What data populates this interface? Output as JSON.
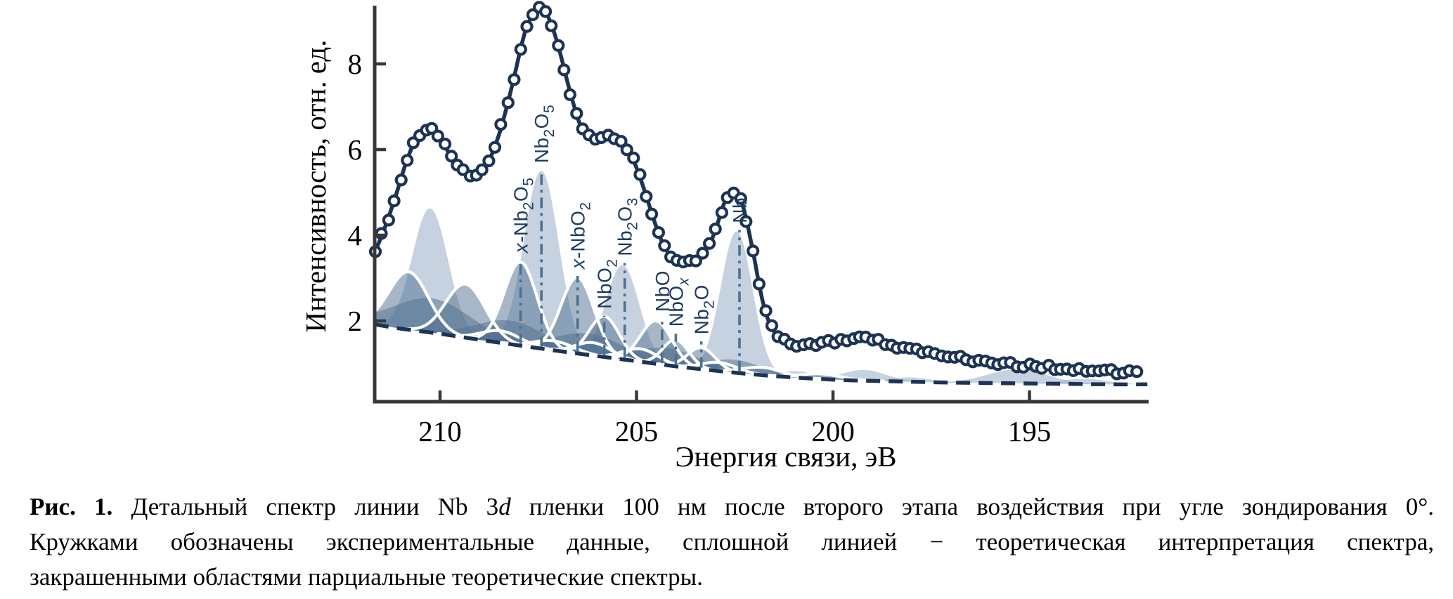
{
  "figure": {
    "caption": {
      "lines": [
        {
          "justify": true,
          "segments": [
            {
              "t": "Рис. 1. ",
              "bold": true
            },
            {
              "t": "Детальный спектр линии Nb 3"
            },
            {
              "t": "d",
              "italic": true
            },
            {
              "t": " пленки 100 нм после второго этапа воздействия при угле зондирования 0°."
            }
          ]
        },
        {
          "justify": true,
          "segments": [
            {
              "t": "Кружками обозначены экспериментальные данные, сплошной линией − теоретическая интерпретация спектра,"
            }
          ]
        },
        {
          "justify": false,
          "segments": [
            {
              "t": "закрашенными областями парциальные теоретические спектры."
            }
          ]
        }
      ]
    }
  },
  "style": {
    "navy": "#1c3354",
    "steel": "#4e7192",
    "label_navy": "#1e3c63",
    "axis_color": "#383838",
    "light_fill": "#8da5bf",
    "light_fill_alpha": 0.5,
    "medium_fill": "#4f6f8f",
    "medium_fill_alpha": 0.5,
    "white": "#ffffff",
    "tick_text": "#000000"
  },
  "chart_data": {
    "type": "line",
    "title": "",
    "xlabel": "Энергия связи, эВ",
    "ylabel": "Интенсивность, отн. ед.",
    "x_ticks": [
      210,
      205,
      200,
      195
    ],
    "y_ticks": [
      2,
      4,
      6,
      8
    ],
    "x_range_ev": [
      211.66,
      192.0
    ],
    "x_descending_left_to_right": true,
    "y_range": [
      0.1,
      9.4
    ],
    "grid": false,
    "legend": "none",
    "series": {
      "theory_line": {
        "name": "теоретическая интерпретация спектра",
        "points": [
          [
            211.66,
            3.62
          ],
          [
            211.5,
            3.95
          ],
          [
            211.3,
            4.45
          ],
          [
            211.1,
            5.0
          ],
          [
            210.9,
            5.6
          ],
          [
            210.7,
            6.08
          ],
          [
            210.5,
            6.38
          ],
          [
            210.35,
            6.46
          ],
          [
            210.2,
            6.45
          ],
          [
            210.05,
            6.33
          ],
          [
            209.9,
            6.12
          ],
          [
            209.7,
            5.8
          ],
          [
            209.5,
            5.56
          ],
          [
            209.3,
            5.42
          ],
          [
            209.15,
            5.37
          ],
          [
            209.0,
            5.43
          ],
          [
            208.85,
            5.58
          ],
          [
            208.7,
            5.85
          ],
          [
            208.5,
            6.35
          ],
          [
            208.3,
            7.0
          ],
          [
            208.1,
            7.75
          ],
          [
            207.95,
            8.35
          ],
          [
            207.8,
            8.85
          ],
          [
            207.62,
            9.18
          ],
          [
            207.48,
            9.32
          ],
          [
            207.35,
            9.25
          ],
          [
            207.2,
            9.0
          ],
          [
            207.05,
            8.6
          ],
          [
            206.9,
            8.1
          ],
          [
            206.75,
            7.55
          ],
          [
            206.6,
            7.05
          ],
          [
            206.45,
            6.62
          ],
          [
            206.3,
            6.4
          ],
          [
            206.15,
            6.3
          ],
          [
            206.0,
            6.26
          ],
          [
            205.85,
            6.27
          ],
          [
            205.7,
            6.3
          ],
          [
            205.55,
            6.3
          ],
          [
            205.4,
            6.22
          ],
          [
            205.25,
            6.05
          ],
          [
            205.1,
            5.8
          ],
          [
            204.95,
            5.45
          ],
          [
            204.8,
            5.05
          ],
          [
            204.65,
            4.62
          ],
          [
            204.5,
            4.2
          ],
          [
            204.35,
            3.85
          ],
          [
            204.2,
            3.6
          ],
          [
            204.05,
            3.45
          ],
          [
            203.9,
            3.4
          ],
          [
            203.75,
            3.38
          ],
          [
            203.6,
            3.4
          ],
          [
            203.45,
            3.46
          ],
          [
            203.3,
            3.58
          ],
          [
            203.15,
            3.78
          ],
          [
            203.02,
            4.05
          ],
          [
            202.9,
            4.38
          ],
          [
            202.78,
            4.72
          ],
          [
            202.66,
            4.93
          ],
          [
            202.55,
            5.02
          ],
          [
            202.45,
            5.0
          ],
          [
            202.35,
            4.85
          ],
          [
            202.24,
            4.5
          ],
          [
            202.12,
            4.0
          ],
          [
            202.0,
            3.45
          ],
          [
            201.88,
            2.85
          ],
          [
            201.76,
            2.35
          ],
          [
            201.64,
            2.0
          ],
          [
            201.52,
            1.78
          ],
          [
            201.4,
            1.62
          ],
          [
            201.25,
            1.53
          ],
          [
            201.1,
            1.48
          ],
          [
            200.9,
            1.44
          ],
          [
            200.7,
            1.43
          ],
          [
            200.5,
            1.44
          ],
          [
            200.3,
            1.47
          ],
          [
            200.1,
            1.5
          ],
          [
            199.9,
            1.53
          ],
          [
            199.7,
            1.57
          ],
          [
            199.5,
            1.61
          ],
          [
            199.35,
            1.63
          ],
          [
            199.2,
            1.62
          ],
          [
            199.0,
            1.57
          ],
          [
            198.8,
            1.51
          ],
          [
            198.6,
            1.46
          ],
          [
            198.4,
            1.42
          ],
          [
            198.2,
            1.38
          ],
          [
            198.0,
            1.34
          ],
          [
            197.8,
            1.3
          ],
          [
            197.6,
            1.27
          ],
          [
            197.4,
            1.23
          ],
          [
            197.2,
            1.2
          ],
          [
            197.0,
            1.17
          ],
          [
            196.8,
            1.14
          ],
          [
            196.6,
            1.11
          ],
          [
            196.4,
            1.08
          ],
          [
            196.2,
            1.06
          ],
          [
            196.0,
            1.04
          ],
          [
            195.8,
            1.02
          ],
          [
            195.6,
            1.0
          ],
          [
            195.4,
            0.98
          ],
          [
            195.2,
            0.97
          ],
          [
            195.0,
            0.96
          ],
          [
            194.8,
            0.95
          ],
          [
            194.6,
            0.93
          ],
          [
            194.4,
            0.91
          ],
          [
            194.2,
            0.89
          ],
          [
            194.0,
            0.87
          ],
          [
            193.8,
            0.86
          ],
          [
            193.6,
            0.85
          ],
          [
            193.4,
            0.84
          ],
          [
            193.2,
            0.83
          ],
          [
            193.0,
            0.82
          ],
          [
            192.8,
            0.81
          ],
          [
            192.6,
            0.8
          ],
          [
            192.4,
            0.79
          ],
          [
            192.25,
            0.78
          ]
        ]
      },
      "experimental_points": {
        "name": "экспериментальные данные (кружки)",
        "sampled_from": "theory_line",
        "step_ev": 0.16,
        "value_jitter": 0.1,
        "marker": "open-circle"
      },
      "background_baseline": {
        "name": "фон (штриховая линия)",
        "points": [
          [
            211.66,
            1.92
          ],
          [
            211.0,
            1.82
          ],
          [
            210.0,
            1.7
          ],
          [
            209.0,
            1.56
          ],
          [
            208.0,
            1.43
          ],
          [
            207.0,
            1.3
          ],
          [
            206.0,
            1.18
          ],
          [
            205.0,
            1.06
          ],
          [
            204.0,
            0.94
          ],
          [
            203.0,
            0.84
          ],
          [
            202.0,
            0.75
          ],
          [
            201.0,
            0.68
          ],
          [
            200.0,
            0.63
          ],
          [
            199.0,
            0.6
          ],
          [
            198.0,
            0.58
          ],
          [
            197.0,
            0.56
          ],
          [
            196.0,
            0.55
          ],
          [
            195.0,
            0.54
          ],
          [
            194.0,
            0.53
          ],
          [
            193.0,
            0.52
          ],
          [
            192.0,
            0.52
          ]
        ]
      },
      "components": [
        {
          "center_ev": 210.25,
          "amplitude": 2.9,
          "sigma": 0.45,
          "style": "light"
        },
        {
          "center_ev": 207.42,
          "amplitude": 4.15,
          "sigma": 0.44,
          "style": "light",
          "label": "Nb2O5"
        },
        {
          "center_ev": 205.35,
          "amplitude": 2.2,
          "sigma": 0.42,
          "style": "light",
          "label": "Nb2O3"
        },
        {
          "center_ev": 202.45,
          "amplitude": 3.3,
          "sigma": 0.4,
          "style": "light",
          "label": "Nb"
        },
        {
          "center_ev": 200.9,
          "amplitude": 0.15,
          "sigma": 0.45,
          "style": "light"
        },
        {
          "center_ev": 199.2,
          "amplitude": 0.25,
          "sigma": 0.55,
          "style": "light"
        },
        {
          "center_ev": 198.0,
          "amplitude": 0.1,
          "sigma": 0.5,
          "style": "light"
        },
        {
          "center_ev": 195.3,
          "amplitude": 0.33,
          "sigma": 0.75,
          "style": "light"
        },
        {
          "center_ev": 193.6,
          "amplitude": 0.12,
          "sigma": 0.6,
          "style": "light"
        },
        {
          "center_ev": 210.2,
          "amplitude": 0.8,
          "sigma": 1.0,
          "style": "medium"
        },
        {
          "center_ev": 208.2,
          "amplitude": 0.55,
          "sigma": 0.9,
          "style": "medium"
        },
        {
          "center_ev": 206.2,
          "amplitude": 0.5,
          "sigma": 0.9,
          "style": "medium"
        },
        {
          "center_ev": 204.2,
          "amplitude": 0.4,
          "sigma": 0.8,
          "style": "medium"
        },
        {
          "center_ev": 202.5,
          "amplitude": 0.3,
          "sigma": 0.7,
          "style": "medium"
        },
        {
          "center_ev": 210.8,
          "amplitude": 1.35,
          "sigma": 0.5,
          "style": "outlined"
        },
        {
          "center_ev": 209.35,
          "amplitude": 1.25,
          "sigma": 0.5,
          "style": "outlined"
        },
        {
          "center_ev": 207.95,
          "amplitude": 1.95,
          "sigma": 0.42,
          "style": "outlined",
          "label": "x-Nb2O5"
        },
        {
          "center_ev": 206.5,
          "amplitude": 1.78,
          "sigma": 0.42,
          "style": "outlined",
          "label": "x-NbO2"
        },
        {
          "center_ev": 205.82,
          "amplitude": 0.95,
          "sigma": 0.38,
          "style": "outlined",
          "label": "NbO2"
        },
        {
          "center_ev": 204.5,
          "amplitude": 1.0,
          "sigma": 0.4,
          "style": "outlined",
          "label": "NbO"
        },
        {
          "center_ev": 204.0,
          "amplitude": 0.62,
          "sigma": 0.33,
          "style": "outlined",
          "label": "NbOx"
        },
        {
          "center_ev": 203.35,
          "amplitude": 0.5,
          "sigma": 0.35,
          "style": "outlined",
          "label": "Nb2O"
        },
        {
          "center_ev": 208.45,
          "amplitude": 0.28,
          "sigma": 0.5,
          "style": "outlined"
        },
        {
          "center_ev": 207.1,
          "amplitude": 0.22,
          "sigma": 0.5,
          "style": "outlined"
        },
        {
          "center_ev": 206.1,
          "amplitude": 0.3,
          "sigma": 0.45,
          "style": "outlined"
        },
        {
          "center_ev": 204.9,
          "amplitude": 0.3,
          "sigma": 0.45,
          "style": "outlined"
        },
        {
          "center_ev": 202.9,
          "amplitude": 0.2,
          "sigma": 0.45,
          "style": "outlined"
        },
        {
          "center_ev": 201.8,
          "amplitude": 0.18,
          "sigma": 0.5,
          "style": "outlined"
        },
        {
          "center_ev": 200.3,
          "amplitude": 0.12,
          "sigma": 0.5,
          "style": "outlined"
        }
      ]
    },
    "peak_markers": [
      {
        "name": "x-nb2o5",
        "ev": 207.95,
        "line_top": 3.42,
        "segments": [
          {
            "t": "x-",
            "italic": true
          },
          {
            "t": "Nb"
          },
          {
            "t": "2",
            "sub": true
          },
          {
            "t": "O"
          },
          {
            "t": "5",
            "sub": true
          }
        ]
      },
      {
        "name": "nb2o5",
        "ev": 207.42,
        "line_top": 5.52,
        "segments": [
          {
            "t": "Nb"
          },
          {
            "t": "2",
            "sub": true
          },
          {
            "t": "O"
          },
          {
            "t": "5",
            "sub": true
          }
        ]
      },
      {
        "name": "x-nbo2",
        "ev": 206.5,
        "line_top": 3.05,
        "segments": [
          {
            "t": "x-",
            "italic": true
          },
          {
            "t": "NbO"
          },
          {
            "t": "2",
            "sub": true
          }
        ]
      },
      {
        "name": "nbo2",
        "ev": 205.82,
        "line_top": 2.12,
        "segments": [
          {
            "t": "NbO"
          },
          {
            "t": "2",
            "sub": true
          }
        ]
      },
      {
        "name": "nb2o3",
        "ev": 205.3,
        "line_top": 3.35,
        "segments": [
          {
            "t": "Nb"
          },
          {
            "t": "2",
            "sub": true
          },
          {
            "t": "O"
          },
          {
            "t": "3",
            "sub": true
          }
        ]
      },
      {
        "name": "nbo",
        "ev": 204.35,
        "line_top": 2.05,
        "segments": [
          {
            "t": "NbO"
          }
        ]
      },
      {
        "name": "nbox",
        "ev": 204.0,
        "line_top": 1.7,
        "segments": [
          {
            "t": "NbO"
          },
          {
            "t": "x",
            "sub": true,
            "italic": true
          }
        ]
      },
      {
        "name": "nb2o",
        "ev": 203.35,
        "line_top": 1.52,
        "segments": [
          {
            "t": "Nb"
          },
          {
            "t": "2",
            "sub": true
          },
          {
            "t": "O"
          }
        ]
      },
      {
        "name": "nb",
        "ev": 202.38,
        "line_top": 4.12,
        "segments": [
          {
            "t": "Nb"
          }
        ]
      }
    ]
  }
}
